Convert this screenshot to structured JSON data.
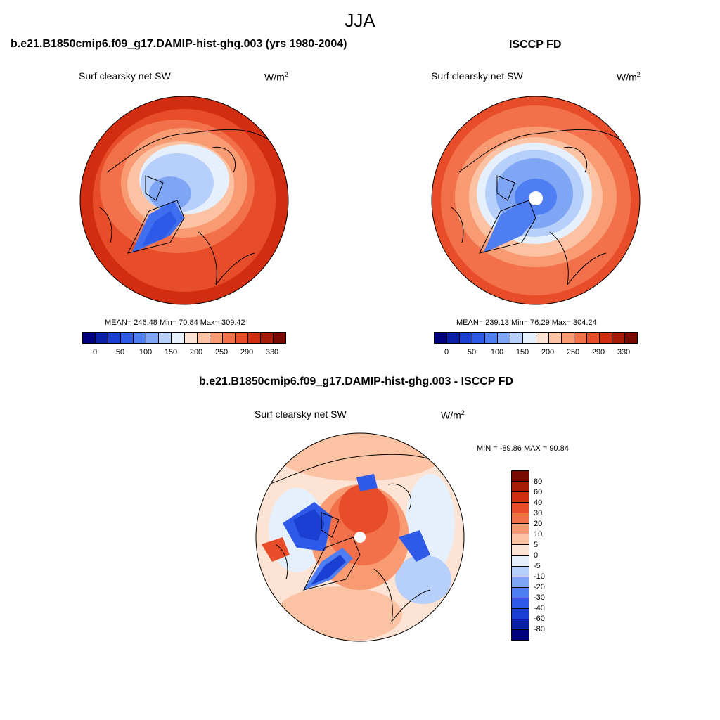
{
  "figure": {
    "season": "JJA",
    "panels": [
      {
        "title": "b.e21.B1850cmip6.f09_g17.DAMIP-hist-ghg.003 (yrs 1980-2004)",
        "variable": "Surf clearsky net SW",
        "units_base": "W/m",
        "units_exp": "2",
        "stats": "MEAN= 246.48  Min=  70.84  Max= 309.42"
      },
      {
        "title": "ISCCP FD",
        "variable": "Surf clearsky net SW",
        "units_base": "W/m",
        "units_exp": "2",
        "stats": "MEAN= 239.13  Min=  76.29  Max= 304.24"
      },
      {
        "title": "b.e21.B1850cmip6.f09_g17.DAMIP-hist-ghg.003 - ISCCP FD",
        "variable": "Surf clearsky net SW",
        "units_base": "W/m",
        "units_exp": "2",
        "stats": "MIN = -89.86 MAX =  90.84"
      }
    ]
  },
  "abs_colorbar": {
    "colors": [
      "#00007f",
      "#0a1ea8",
      "#1a3fd2",
      "#2f5ae8",
      "#4f7ef2",
      "#7fa5f5",
      "#b7cffb",
      "#e6f0fc",
      "#fde3d4",
      "#fcc2a4",
      "#f89b73",
      "#f3714a",
      "#e84d2a",
      "#d22d10",
      "#a81a08",
      "#7a0b03"
    ],
    "labels": [
      "0",
      "50",
      "100",
      "150",
      "200",
      "250",
      "290",
      "330"
    ]
  },
  "diff_colorbar": {
    "colors": [
      "#7a0b03",
      "#a81a08",
      "#d22d10",
      "#e84d2a",
      "#f3714a",
      "#f89b73",
      "#fcc2a4",
      "#fde3d4",
      "#e6f0fc",
      "#b7cffb",
      "#7fa5f5",
      "#4f7ef2",
      "#2f5ae8",
      "#1a3fd2",
      "#0a1ea8",
      "#00007f"
    ],
    "labels": [
      "80",
      "60",
      "40",
      "30",
      "20",
      "10",
      "5",
      "0",
      "-5",
      "-10",
      "-20",
      "-30",
      "-40",
      "-60",
      "-80"
    ]
  }
}
